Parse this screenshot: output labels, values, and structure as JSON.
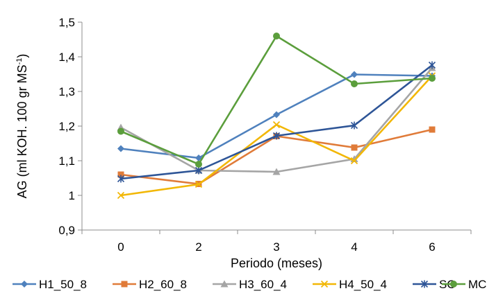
{
  "chart_data": {
    "type": "line",
    "title": "",
    "xlabel": "Periodo (meses)",
    "ylabel": "AG (ml KOH. 100 gr MS",
    "ylabel_superscript": "-1",
    "ylabel_close": ")",
    "categories": [
      "0",
      "2",
      "3",
      "4",
      "6"
    ],
    "ylim": [
      0.9,
      1.5
    ],
    "yticks": [
      "0,9",
      "1",
      "1,1",
      "1,2",
      "1,3",
      "1,4",
      "1,5"
    ],
    "grid": false,
    "legend_position": "bottom",
    "series": [
      {
        "name": "H1_50_8",
        "color": "#4F81BD",
        "marker": "diamond",
        "values": [
          1.135,
          1.108,
          1.233,
          1.349,
          1.345
        ]
      },
      {
        "name": "H2_60_8",
        "color": "#E07B39",
        "marker": "square",
        "values": [
          1.06,
          1.033,
          1.171,
          1.138,
          1.19
        ]
      },
      {
        "name": "H3_60_4",
        "color": "#A5A5A5",
        "marker": "triangle",
        "values": [
          1.196,
          1.072,
          1.068,
          1.105,
          1.368
        ]
      },
      {
        "name": "H4_50_4",
        "color": "#F2B705",
        "marker": "x",
        "values": [
          1.0,
          1.032,
          1.204,
          1.1,
          1.345
        ]
      },
      {
        "name": "SC",
        "color": "#2E5597",
        "marker": "star",
        "values": [
          1.048,
          1.072,
          1.172,
          1.202,
          1.376
        ]
      },
      {
        "name": "MC",
        "color": "#5B9E3C",
        "marker": "circle",
        "values": [
          1.185,
          1.09,
          1.46,
          1.322,
          1.338
        ]
      }
    ]
  }
}
